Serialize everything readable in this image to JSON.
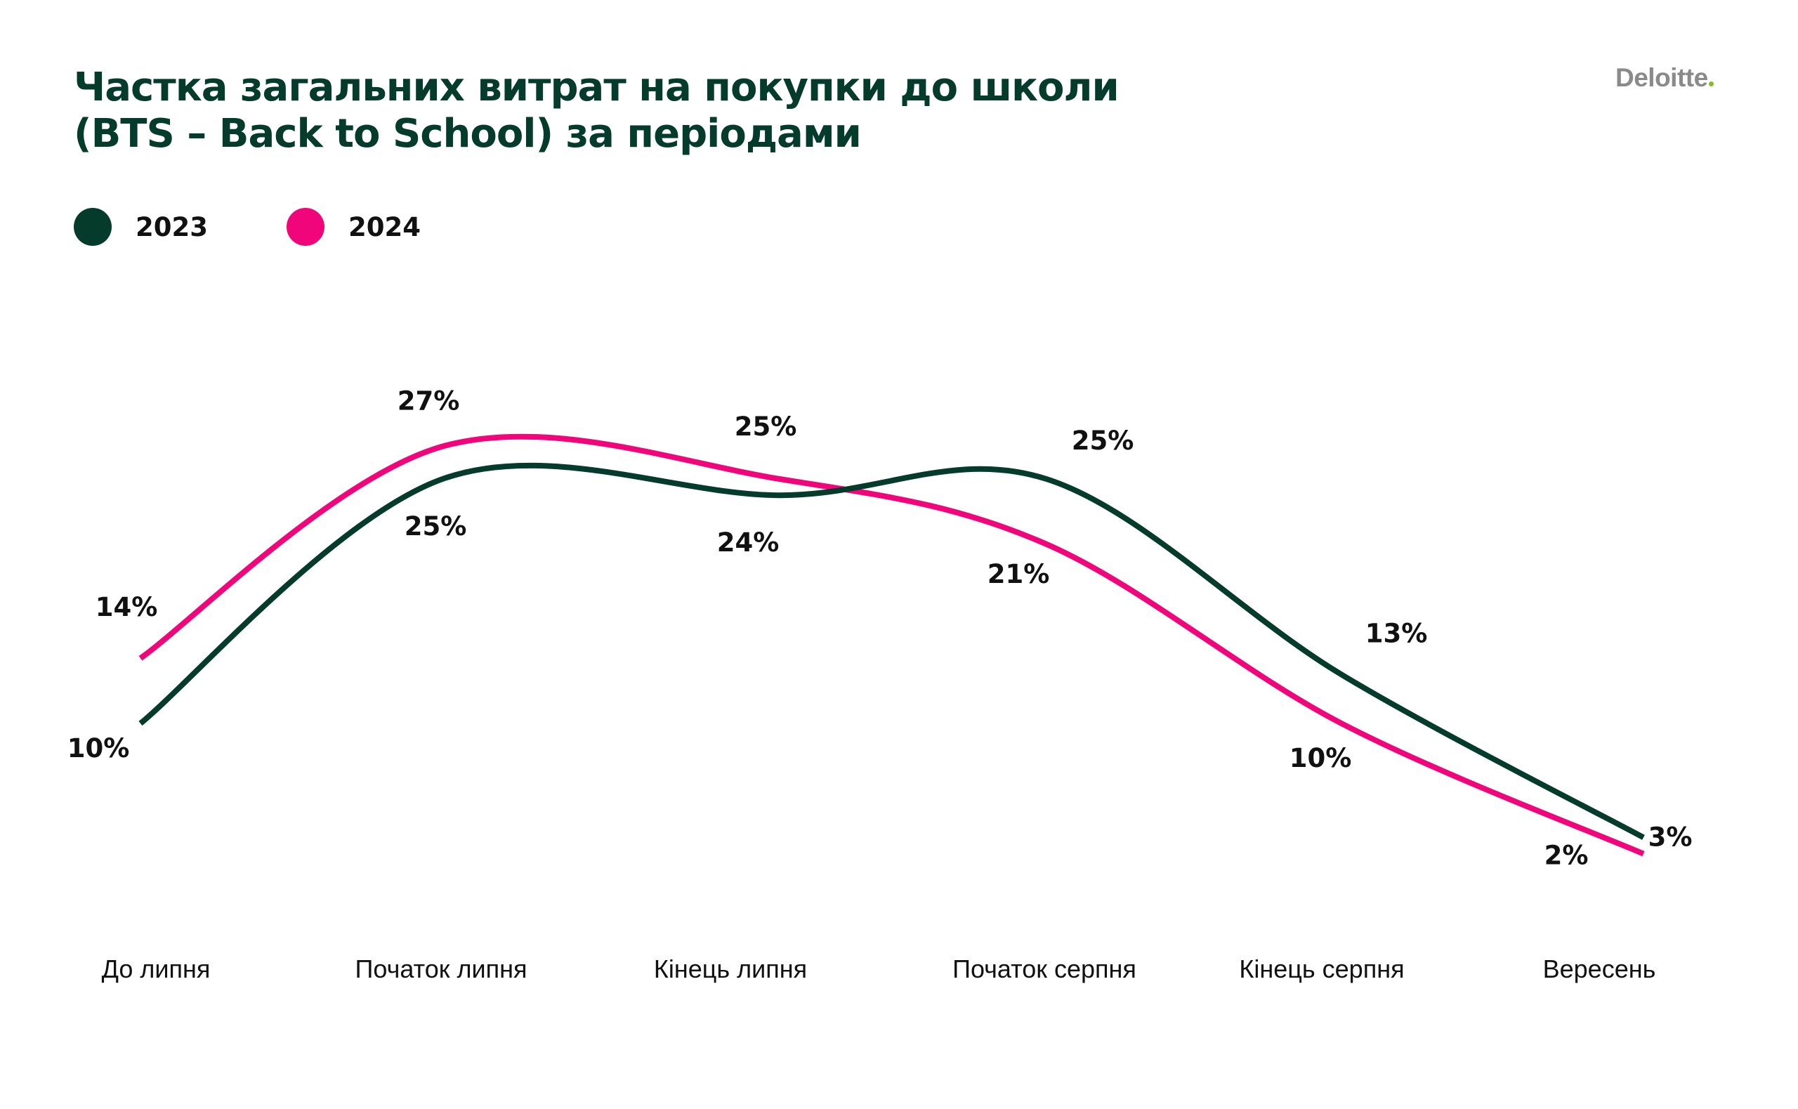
{
  "title_lines": [
    "Частка загальних витрат на покупки до школи",
    "(BTS – Back to School) за періодами"
  ],
  "logo": {
    "text": "Deloitte",
    "dot_color": "#86bc25"
  },
  "colors": {
    "title": "#043b2a",
    "series_2023": "#043b2a",
    "series_2024": "#f0057a"
  },
  "chart_data": {
    "type": "line",
    "title": "Частка загальних витрат на покупки до школи (BTS – Back to School) за періодами",
    "categories": [
      "До липня",
      "Початок липня",
      "Кінець липня",
      "Початок серпня",
      "Кінець серпня",
      "Вересень"
    ],
    "series": [
      {
        "name": "2023",
        "color": "#043b2a",
        "values": [
          10,
          25,
          24,
          25,
          13,
          3
        ],
        "labels": [
          "10%",
          "25%",
          "24%",
          "25%",
          "13%",
          "3%"
        ]
      },
      {
        "name": "2024",
        "color": "#f0057a",
        "values": [
          14,
          27,
          25,
          21,
          10,
          2
        ],
        "labels": [
          "14%",
          "27%",
          "25%",
          "21%",
          "10%",
          "2%"
        ]
      }
    ],
    "ylim": [
      0,
      30
    ],
    "grid": false,
    "legend": "top-left",
    "unit": "%"
  }
}
